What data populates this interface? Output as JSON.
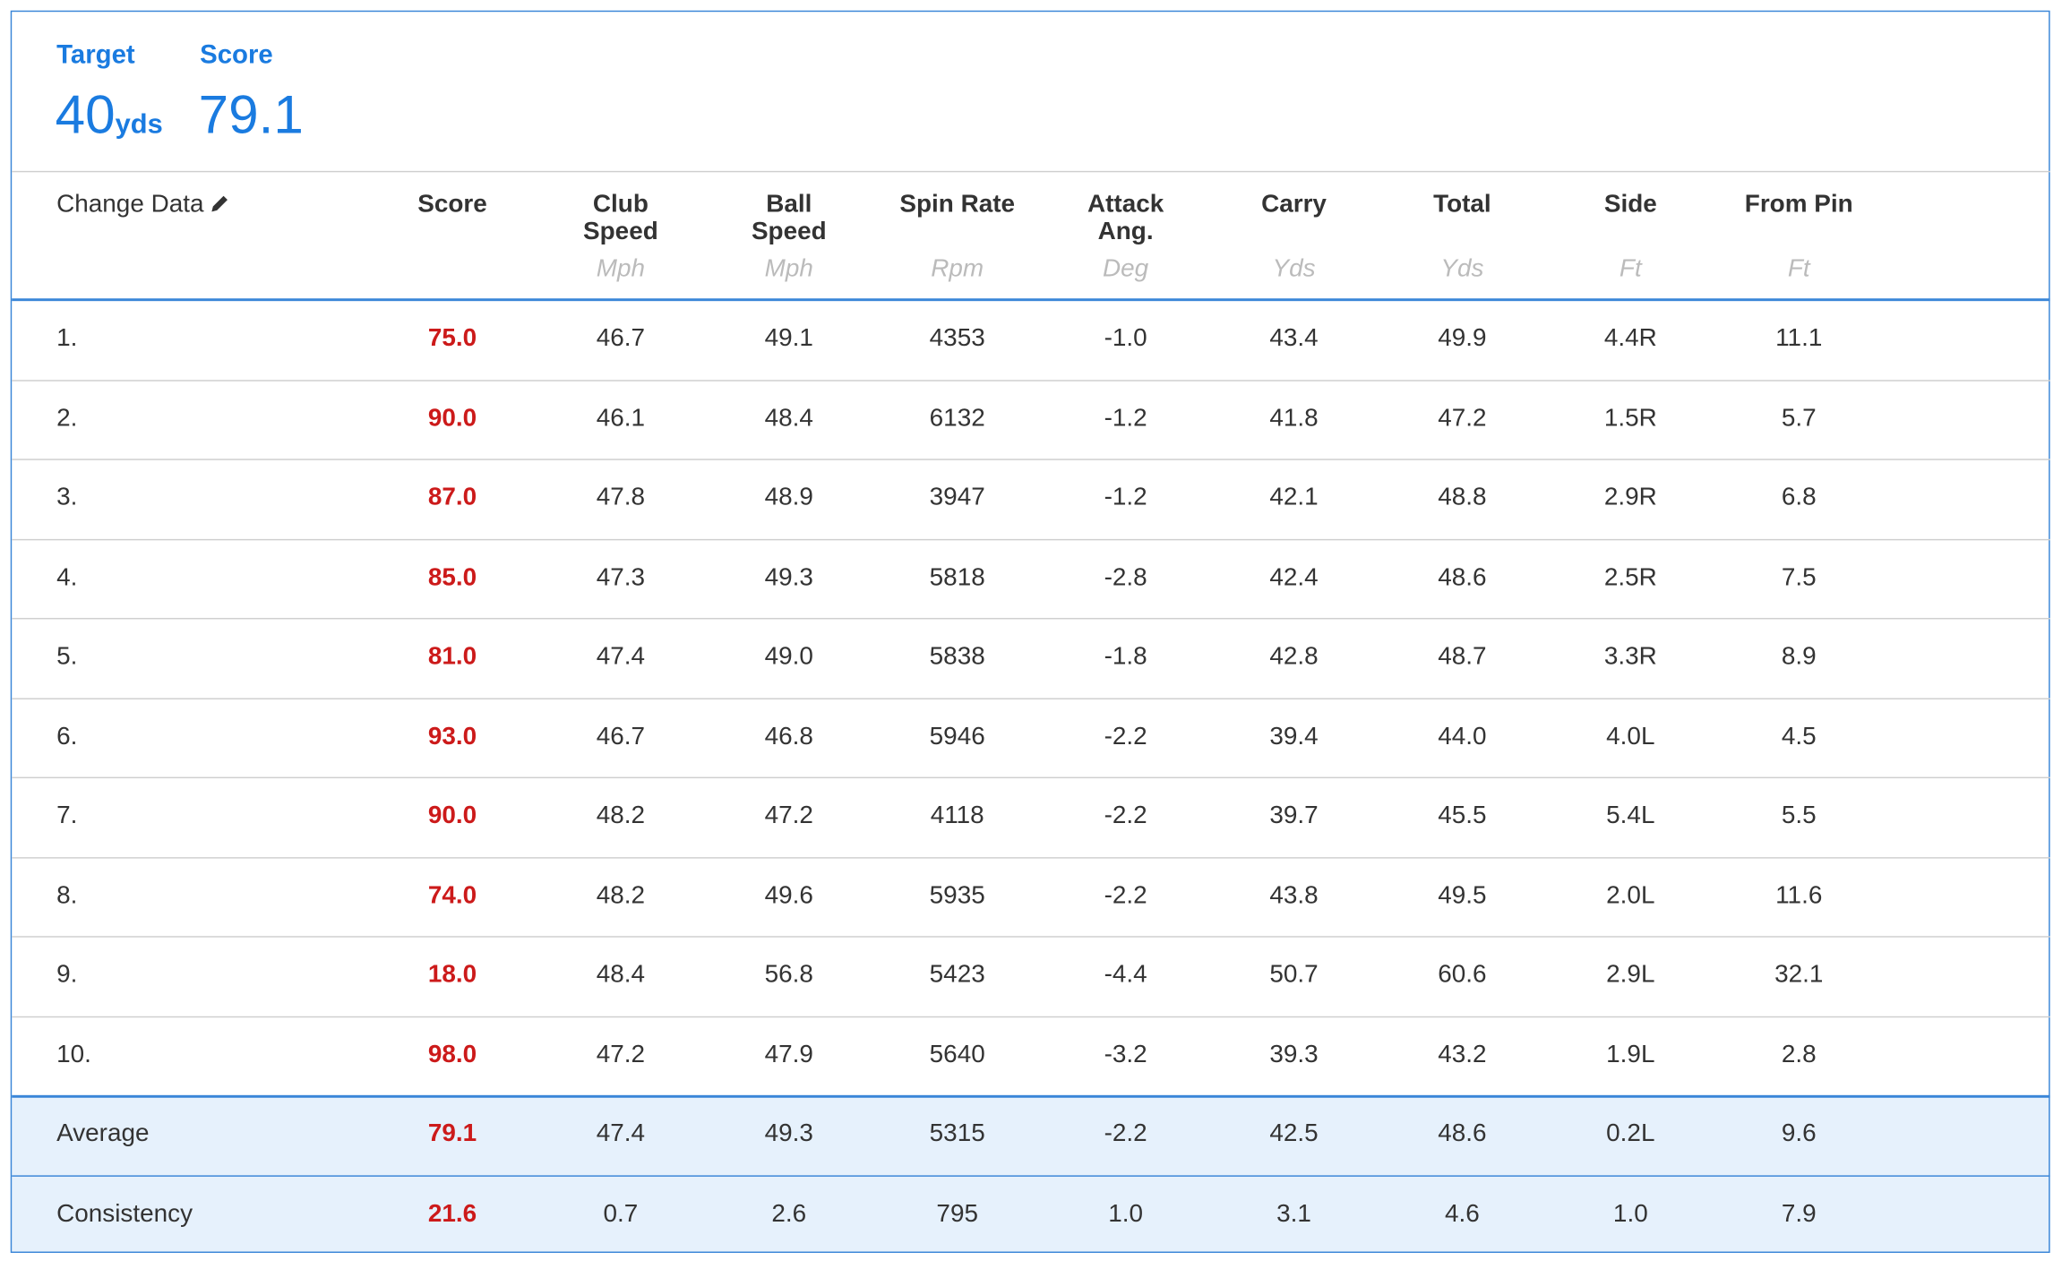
{
  "header": {
    "target_label": "Target",
    "target_value": "40",
    "target_unit": "yds",
    "score_label": "Score",
    "score_value": "79.1"
  },
  "table": {
    "first_column": "Change Data",
    "columns": [
      {
        "name_lines": [
          "Score"
        ],
        "unit": ""
      },
      {
        "name_lines": [
          "Club",
          "Speed"
        ],
        "unit": "Mph"
      },
      {
        "name_lines": [
          "Ball",
          "Speed"
        ],
        "unit": "Mph"
      },
      {
        "name_lines": [
          "Spin Rate"
        ],
        "unit": "Rpm"
      },
      {
        "name_lines": [
          "Attack",
          "Ang."
        ],
        "unit": "Deg"
      },
      {
        "name_lines": [
          "Carry"
        ],
        "unit": "Yds"
      },
      {
        "name_lines": [
          "Total"
        ],
        "unit": "Yds"
      },
      {
        "name_lines": [
          "Side"
        ],
        "unit": "Ft"
      },
      {
        "name_lines": [
          "From Pin"
        ],
        "unit": "Ft"
      }
    ],
    "rows": [
      [
        "1.",
        "75.0",
        "46.7",
        "49.1",
        "4353",
        "-1.0",
        "43.4",
        "49.9",
        "4.4R",
        "11.1"
      ],
      [
        "2.",
        "90.0",
        "46.1",
        "48.4",
        "6132",
        "-1.2",
        "41.8",
        "47.2",
        "1.5R",
        "5.7"
      ],
      [
        "3.",
        "87.0",
        "47.8",
        "48.9",
        "3947",
        "-1.2",
        "42.1",
        "48.8",
        "2.9R",
        "6.8"
      ],
      [
        "4.",
        "85.0",
        "47.3",
        "49.3",
        "5818",
        "-2.8",
        "42.4",
        "48.6",
        "2.5R",
        "7.5"
      ],
      [
        "5.",
        "81.0",
        "47.4",
        "49.0",
        "5838",
        "-1.8",
        "42.8",
        "48.7",
        "3.3R",
        "8.9"
      ],
      [
        "6.",
        "93.0",
        "46.7",
        "46.8",
        "5946",
        "-2.2",
        "39.4",
        "44.0",
        "4.0L",
        "4.5"
      ],
      [
        "7.",
        "90.0",
        "48.2",
        "47.2",
        "4118",
        "-2.2",
        "39.7",
        "45.5",
        "5.4L",
        "5.5"
      ],
      [
        "8.",
        "74.0",
        "48.2",
        "49.6",
        "5935",
        "-2.2",
        "43.8",
        "49.5",
        "2.0L",
        "11.6"
      ],
      [
        "9.",
        "18.0",
        "48.4",
        "56.8",
        "5423",
        "-4.4",
        "50.7",
        "60.6",
        "2.9L",
        "32.1"
      ],
      [
        "10.",
        "98.0",
        "47.2",
        "47.9",
        "5640",
        "-3.2",
        "39.3",
        "43.2",
        "1.9L",
        "2.8"
      ]
    ],
    "summary": [
      [
        "Average",
        "79.1",
        "47.4",
        "49.3",
        "5315",
        "-2.2",
        "42.5",
        "48.6",
        "0.2L",
        "9.6"
      ],
      [
        "Consistency",
        "21.6",
        "0.7",
        "2.6",
        "795",
        "1.0",
        "3.1",
        "4.6",
        "1.0",
        "7.9"
      ]
    ]
  }
}
